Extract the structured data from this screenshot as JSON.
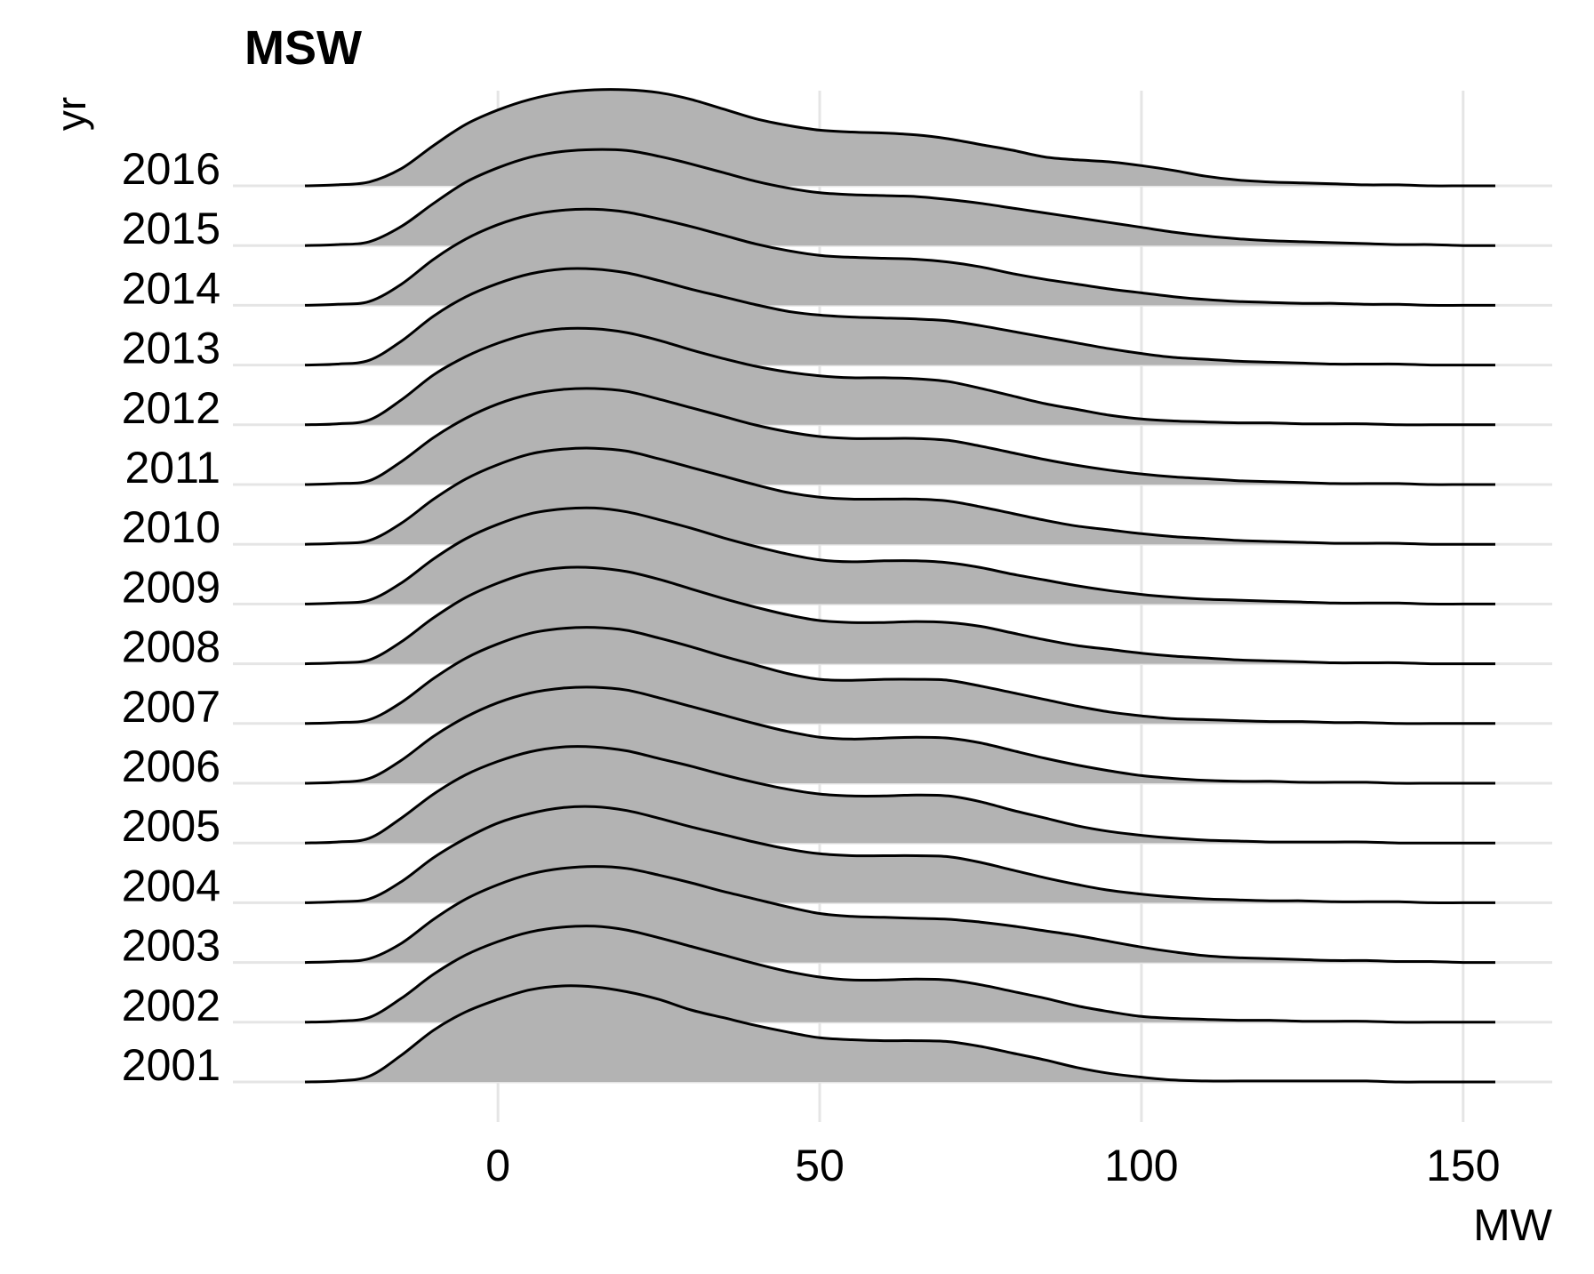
{
  "chart_data": {
    "type": "ridgeline",
    "title": "MSW",
    "xlabel": "MW",
    "ylabel": "yr",
    "xlim": [
      -30,
      155
    ],
    "xticks": [
      0,
      50,
      100,
      150
    ],
    "grid": true,
    "legend": "none",
    "fill_color": "#b3b3b3",
    "line_color": "#000000",
    "grid_color": "#e5e5e5",
    "categories": [
      "2001",
      "2002",
      "2003",
      "2004",
      "2005",
      "2006",
      "2007",
      "2008",
      "2009",
      "2010",
      "2011",
      "2012",
      "2013",
      "2014",
      "2015",
      "2016"
    ],
    "x": [
      -30,
      -25,
      -20,
      -15,
      -10,
      -5,
      0,
      5,
      10,
      15,
      20,
      25,
      30,
      35,
      40,
      45,
      50,
      55,
      60,
      65,
      70,
      75,
      80,
      85,
      90,
      95,
      100,
      105,
      110,
      115,
      120,
      125,
      130,
      135,
      140,
      145,
      150,
      155
    ],
    "series": [
      {
        "name": "2001",
        "values": [
          0,
          0.01,
          0.06,
          0.28,
          0.54,
          0.73,
          0.86,
          0.96,
          1.0,
          0.99,
          0.94,
          0.86,
          0.75,
          0.67,
          0.59,
          0.52,
          0.46,
          0.44,
          0.43,
          0.43,
          0.42,
          0.37,
          0.3,
          0.23,
          0.15,
          0.09,
          0.05,
          0.02,
          0.01,
          0.01,
          0.01,
          0.01,
          0.01,
          0.01,
          0,
          0,
          0,
          0
        ]
      },
      {
        "name": "2002",
        "values": [
          0,
          0.01,
          0.05,
          0.25,
          0.5,
          0.7,
          0.84,
          0.94,
          0.99,
          1.0,
          0.96,
          0.88,
          0.79,
          0.7,
          0.61,
          0.53,
          0.47,
          0.44,
          0.44,
          0.45,
          0.44,
          0.39,
          0.32,
          0.25,
          0.17,
          0.11,
          0.06,
          0.04,
          0.03,
          0.02,
          0.02,
          0.01,
          0.01,
          0.01,
          0,
          0,
          0,
          0
        ]
      },
      {
        "name": "2003",
        "values": [
          0,
          0.01,
          0.04,
          0.2,
          0.45,
          0.66,
          0.81,
          0.92,
          0.98,
          1.0,
          0.98,
          0.91,
          0.83,
          0.74,
          0.66,
          0.58,
          0.51,
          0.48,
          0.47,
          0.46,
          0.45,
          0.42,
          0.38,
          0.33,
          0.28,
          0.22,
          0.16,
          0.11,
          0.07,
          0.05,
          0.04,
          0.03,
          0.02,
          0.02,
          0.01,
          0.01,
          0,
          0
        ]
      },
      {
        "name": "2004",
        "values": [
          0,
          0.01,
          0.04,
          0.22,
          0.47,
          0.67,
          0.83,
          0.93,
          0.99,
          1.0,
          0.96,
          0.88,
          0.79,
          0.71,
          0.63,
          0.56,
          0.51,
          0.49,
          0.49,
          0.49,
          0.48,
          0.42,
          0.34,
          0.26,
          0.19,
          0.13,
          0.09,
          0.06,
          0.04,
          0.03,
          0.02,
          0.02,
          0.01,
          0.01,
          0.01,
          0,
          0,
          0
        ]
      },
      {
        "name": "2005",
        "values": [
          0,
          0.01,
          0.05,
          0.26,
          0.51,
          0.71,
          0.85,
          0.95,
          1.0,
          1.0,
          0.96,
          0.88,
          0.8,
          0.71,
          0.63,
          0.56,
          0.51,
          0.49,
          0.49,
          0.5,
          0.49,
          0.43,
          0.34,
          0.26,
          0.18,
          0.12,
          0.08,
          0.05,
          0.03,
          0.02,
          0.01,
          0.01,
          0.01,
          0.01,
          0,
          0,
          0,
          0
        ]
      },
      {
        "name": "2006",
        "values": [
          0,
          0.01,
          0.05,
          0.24,
          0.49,
          0.69,
          0.84,
          0.94,
          0.99,
          1.0,
          0.97,
          0.89,
          0.8,
          0.71,
          0.62,
          0.54,
          0.48,
          0.46,
          0.47,
          0.48,
          0.47,
          0.42,
          0.34,
          0.26,
          0.19,
          0.13,
          0.08,
          0.05,
          0.03,
          0.02,
          0.02,
          0.01,
          0.01,
          0.01,
          0,
          0,
          0,
          0
        ]
      },
      {
        "name": "2007",
        "values": [
          0,
          0.01,
          0.04,
          0.22,
          0.47,
          0.68,
          0.83,
          0.94,
          0.99,
          1.0,
          0.97,
          0.89,
          0.8,
          0.7,
          0.61,
          0.52,
          0.46,
          0.45,
          0.46,
          0.46,
          0.45,
          0.39,
          0.32,
          0.25,
          0.18,
          0.12,
          0.08,
          0.05,
          0.04,
          0.03,
          0.02,
          0.02,
          0.01,
          0.01,
          0,
          0,
          0,
          0
        ]
      },
      {
        "name": "2008",
        "values": [
          0,
          0.01,
          0.04,
          0.23,
          0.48,
          0.69,
          0.84,
          0.95,
          1.0,
          1.0,
          0.96,
          0.88,
          0.78,
          0.68,
          0.59,
          0.51,
          0.45,
          0.43,
          0.43,
          0.44,
          0.43,
          0.39,
          0.32,
          0.25,
          0.19,
          0.15,
          0.11,
          0.08,
          0.06,
          0.04,
          0.03,
          0.02,
          0.01,
          0.01,
          0.01,
          0,
          0,
          0
        ]
      },
      {
        "name": "2009",
        "values": [
          0,
          0.01,
          0.04,
          0.22,
          0.47,
          0.68,
          0.83,
          0.94,
          0.99,
          1.0,
          0.96,
          0.88,
          0.79,
          0.69,
          0.6,
          0.52,
          0.46,
          0.44,
          0.45,
          0.45,
          0.43,
          0.38,
          0.31,
          0.25,
          0.19,
          0.14,
          0.1,
          0.07,
          0.05,
          0.04,
          0.03,
          0.02,
          0.01,
          0.01,
          0.01,
          0,
          0,
          0
        ]
      },
      {
        "name": "2010",
        "values": [
          0,
          0.01,
          0.04,
          0.22,
          0.47,
          0.68,
          0.83,
          0.94,
          0.99,
          1.0,
          0.97,
          0.89,
          0.8,
          0.71,
          0.62,
          0.54,
          0.49,
          0.47,
          0.47,
          0.47,
          0.45,
          0.39,
          0.32,
          0.25,
          0.19,
          0.15,
          0.11,
          0.08,
          0.06,
          0.04,
          0.03,
          0.02,
          0.01,
          0.01,
          0.01,
          0,
          0,
          0
        ]
      },
      {
        "name": "2011",
        "values": [
          0,
          0.01,
          0.04,
          0.24,
          0.49,
          0.69,
          0.84,
          0.94,
          0.99,
          1.0,
          0.97,
          0.89,
          0.8,
          0.71,
          0.62,
          0.55,
          0.5,
          0.48,
          0.48,
          0.48,
          0.46,
          0.4,
          0.33,
          0.26,
          0.2,
          0.15,
          0.11,
          0.08,
          0.06,
          0.04,
          0.03,
          0.02,
          0.01,
          0.01,
          0.01,
          0,
          0,
          0
        ]
      },
      {
        "name": "2012",
        "values": [
          0,
          0.01,
          0.05,
          0.26,
          0.52,
          0.71,
          0.85,
          0.95,
          1.0,
          1.0,
          0.96,
          0.88,
          0.78,
          0.69,
          0.61,
          0.55,
          0.51,
          0.49,
          0.49,
          0.48,
          0.45,
          0.38,
          0.3,
          0.22,
          0.16,
          0.1,
          0.06,
          0.04,
          0.03,
          0.02,
          0.02,
          0.01,
          0.01,
          0.01,
          0,
          0,
          0,
          0
        ]
      },
      {
        "name": "2013",
        "values": [
          0,
          0.01,
          0.05,
          0.25,
          0.51,
          0.71,
          0.85,
          0.95,
          1.0,
          1.0,
          0.96,
          0.88,
          0.79,
          0.71,
          0.63,
          0.56,
          0.52,
          0.5,
          0.49,
          0.48,
          0.46,
          0.41,
          0.35,
          0.29,
          0.23,
          0.17,
          0.12,
          0.08,
          0.06,
          0.04,
          0.03,
          0.02,
          0.01,
          0.01,
          0.01,
          0,
          0,
          0
        ]
      },
      {
        "name": "2014",
        "values": [
          0,
          0.01,
          0.04,
          0.22,
          0.48,
          0.69,
          0.84,
          0.94,
          0.99,
          1.0,
          0.97,
          0.9,
          0.82,
          0.73,
          0.64,
          0.57,
          0.52,
          0.5,
          0.49,
          0.48,
          0.45,
          0.4,
          0.33,
          0.27,
          0.22,
          0.17,
          0.13,
          0.09,
          0.06,
          0.04,
          0.03,
          0.02,
          0.02,
          0.01,
          0.01,
          0,
          0,
          0
        ]
      },
      {
        "name": "2015",
        "values": [
          0,
          0.01,
          0.04,
          0.2,
          0.44,
          0.66,
          0.81,
          0.92,
          0.98,
          1.0,
          0.99,
          0.93,
          0.85,
          0.76,
          0.67,
          0.6,
          0.55,
          0.53,
          0.52,
          0.51,
          0.48,
          0.44,
          0.39,
          0.34,
          0.29,
          0.24,
          0.19,
          0.14,
          0.1,
          0.07,
          0.05,
          0.04,
          0.03,
          0.02,
          0.01,
          0.01,
          0,
          0
        ]
      },
      {
        "name": "2016",
        "values": [
          0,
          0.01,
          0.04,
          0.18,
          0.42,
          0.64,
          0.79,
          0.9,
          0.97,
          1.0,
          1.0,
          0.97,
          0.9,
          0.8,
          0.7,
          0.63,
          0.58,
          0.56,
          0.55,
          0.53,
          0.49,
          0.43,
          0.37,
          0.3,
          0.27,
          0.25,
          0.21,
          0.16,
          0.1,
          0.06,
          0.04,
          0.03,
          0.02,
          0.01,
          0.01,
          0,
          0,
          0
        ]
      }
    ]
  }
}
